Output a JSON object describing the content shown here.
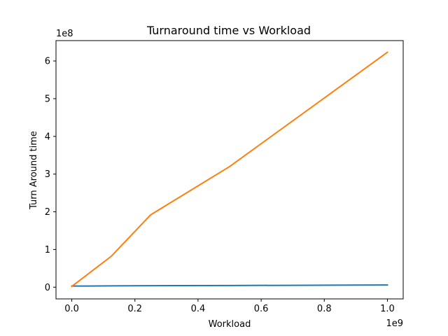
{
  "chart_data": {
    "type": "line",
    "title": "Turnaround time vs Workload",
    "xlabel": "Workload",
    "ylabel": "Turn Around time",
    "x_offset_label": "1e9",
    "y_offset_label": "1e8",
    "xlim": [
      -0.05,
      1.05
    ],
    "ylim": [
      -0.31,
      6.54
    ],
    "x_ticks": [
      0.0,
      0.2,
      0.4,
      0.6,
      0.8,
      1.0
    ],
    "x_tick_labels": [
      "0.0",
      "0.2",
      "0.4",
      "0.6",
      "0.8",
      "1.0"
    ],
    "y_ticks": [
      0,
      1,
      2,
      3,
      4,
      5,
      6
    ],
    "y_tick_labels": [
      "0",
      "1",
      "2",
      "3",
      "4",
      "5",
      "6"
    ],
    "grid": false,
    "series": [
      {
        "color": "#1f77b4",
        "x": [
          0.0,
          0.125,
          0.25,
          0.5,
          1.0
        ],
        "y": [
          0.03,
          0.035,
          0.04,
          0.045,
          0.06
        ]
      },
      {
        "color": "#ff7f0e",
        "x": [
          0.0,
          0.125,
          0.25,
          0.5,
          1.0
        ],
        "y": [
          0.02,
          0.82,
          1.92,
          3.2,
          6.23
        ]
      }
    ]
  }
}
